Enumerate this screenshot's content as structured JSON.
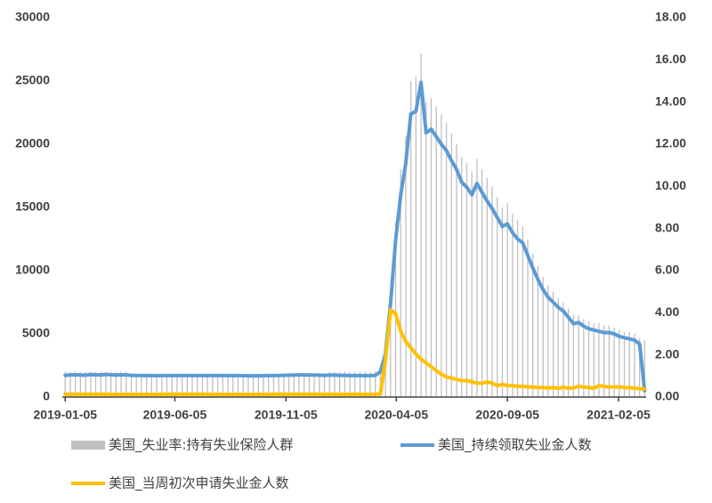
{
  "chart_data": {
    "type": "combo",
    "x": [
      "2019-01-05",
      "2019-01-12",
      "2019-01-19",
      "2019-01-26",
      "2019-02-02",
      "2019-02-09",
      "2019-02-16",
      "2019-02-23",
      "2019-03-02",
      "2019-03-09",
      "2019-03-16",
      "2019-03-23",
      "2019-03-30",
      "2019-04-06",
      "2019-04-13",
      "2019-04-20",
      "2019-04-27",
      "2019-05-04",
      "2019-05-11",
      "2019-05-18",
      "2019-05-25",
      "2019-06-01",
      "2019-06-08",
      "2019-06-15",
      "2019-06-22",
      "2019-06-29",
      "2019-07-06",
      "2019-07-13",
      "2019-07-20",
      "2019-07-27",
      "2019-08-03",
      "2019-08-10",
      "2019-08-17",
      "2019-08-24",
      "2019-08-31",
      "2019-09-07",
      "2019-09-14",
      "2019-09-21",
      "2019-09-28",
      "2019-10-05",
      "2019-10-12",
      "2019-10-19",
      "2019-10-26",
      "2019-11-02",
      "2019-11-09",
      "2019-11-16",
      "2019-11-23",
      "2019-11-30",
      "2019-12-07",
      "2019-12-14",
      "2019-12-21",
      "2019-12-28",
      "2020-01-04",
      "2020-01-11",
      "2020-01-18",
      "2020-01-25",
      "2020-02-01",
      "2020-02-08",
      "2020-02-15",
      "2020-02-22",
      "2020-02-29",
      "2020-03-07",
      "2020-03-14",
      "2020-03-21",
      "2020-03-28",
      "2020-04-04",
      "2020-04-11",
      "2020-04-18",
      "2020-04-25",
      "2020-05-02",
      "2020-05-09",
      "2020-05-16",
      "2020-05-23",
      "2020-05-30",
      "2020-06-06",
      "2020-06-13",
      "2020-06-20",
      "2020-06-27",
      "2020-07-04",
      "2020-07-11",
      "2020-07-18",
      "2020-07-25",
      "2020-08-01",
      "2020-08-08",
      "2020-08-15",
      "2020-08-22",
      "2020-08-29",
      "2020-09-05",
      "2020-09-12",
      "2020-09-19",
      "2020-09-26",
      "2020-10-03",
      "2020-10-10",
      "2020-10-17",
      "2020-10-24",
      "2020-10-31",
      "2020-11-07",
      "2020-11-14",
      "2020-11-21",
      "2020-11-28",
      "2020-12-05",
      "2020-12-12",
      "2020-12-19",
      "2020-12-26",
      "2021-01-02",
      "2021-01-09",
      "2021-01-16",
      "2021-01-23",
      "2021-01-30",
      "2021-02-06",
      "2021-02-13",
      "2021-02-20",
      "2021-02-27",
      "2021-03-06",
      "2021-03-13"
    ],
    "series": [
      {
        "name": "美国_失业率:持有失业保险人群",
        "type": "bar",
        "axis": "y2",
        "color": "#bfbfbf",
        "values": [
          1.2,
          1.2,
          1.2,
          1.2,
          1.2,
          1.2,
          1.2,
          1.2,
          1.2,
          1.2,
          1.2,
          1.2,
          1.2,
          1.1,
          1.1,
          1.1,
          1.1,
          1.1,
          1.1,
          1.1,
          1.1,
          1.1,
          1.1,
          1.1,
          1.1,
          1.1,
          1.1,
          1.1,
          1.1,
          1.1,
          1.1,
          1.1,
          1.1,
          1.1,
          1.1,
          1.1,
          1.1,
          1.1,
          1.1,
          1.1,
          1.1,
          1.1,
          1.1,
          1.1,
          1.1,
          1.1,
          1.1,
          1.1,
          1.1,
          1.1,
          1.1,
          1.1,
          1.2,
          1.2,
          1.2,
          1.2,
          1.2,
          1.2,
          1.2,
          1.2,
          1.2,
          1.2,
          1.2,
          2.3,
          5.0,
          8.3,
          10.8,
          12.4,
          15.0,
          15.2,
          16.3,
          14.0,
          14.2,
          13.8,
          13.4,
          13.0,
          12.5,
          12.0,
          11.4,
          11.1,
          10.7,
          11.3,
          10.8,
          10.4,
          10.0,
          9.5,
          9.0,
          9.2,
          8.7,
          8.4,
          8.1,
          7.5,
          6.8,
          6.2,
          5.7,
          5.3,
          5.0,
          4.7,
          4.5,
          4.2,
          3.9,
          3.9,
          3.7,
          3.6,
          3.5,
          3.5,
          3.4,
          3.4,
          3.3,
          3.2,
          3.1,
          3.1,
          3.0,
          2.8,
          2.7
        ]
      },
      {
        "name": "美国_持续领取失业金人数",
        "type": "line",
        "color": "#5b9bd5",
        "values": [
          1720,
          1750,
          1760,
          1740,
          1730,
          1780,
          1760,
          1750,
          1790,
          1760,
          1740,
          1760,
          1750,
          1720,
          1710,
          1700,
          1700,
          1700,
          1690,
          1700,
          1700,
          1700,
          1700,
          1710,
          1700,
          1700,
          1700,
          1700,
          1700,
          1710,
          1700,
          1700,
          1700,
          1700,
          1700,
          1690,
          1680,
          1680,
          1680,
          1690,
          1700,
          1700,
          1710,
          1720,
          1730,
          1740,
          1750,
          1750,
          1740,
          1740,
          1730,
          1720,
          1730,
          1740,
          1720,
          1720,
          1700,
          1700,
          1700,
          1690,
          1700,
          1720,
          2000,
          3400,
          7400,
          12400,
          16000,
          18500,
          22400,
          22600,
          24900,
          20900,
          21200,
          20600,
          20000,
          19500,
          18700,
          18000,
          17000,
          16600,
          16000,
          16900,
          16200,
          15500,
          14900,
          14200,
          13500,
          13700,
          13000,
          12500,
          12200,
          11200,
          10200,
          9300,
          8500,
          7900,
          7500,
          7100,
          6800,
          6300,
          5800,
          5900,
          5600,
          5400,
          5300,
          5200,
          5100,
          5100,
          5000,
          4800,
          4700,
          4600,
          4500,
          4200,
          500
        ]
      },
      {
        "name": "美国_当周初次申请失业金人数",
        "type": "line",
        "color": "#ffc000",
        "values": [
          230,
          220,
          220,
          230,
          220,
          220,
          220,
          220,
          220,
          210,
          210,
          210,
          210,
          210,
          210,
          210,
          210,
          210,
          210,
          210,
          220,
          220,
          220,
          220,
          220,
          220,
          220,
          220,
          220,
          220,
          210,
          210,
          210,
          210,
          210,
          210,
          210,
          210,
          210,
          210,
          220,
          220,
          220,
          220,
          220,
          220,
          220,
          220,
          220,
          220,
          220,
          220,
          210,
          220,
          220,
          210,
          210,
          220,
          220,
          210,
          210,
          220,
          250,
          2900,
          6900,
          6600,
          5200,
          4400,
          3900,
          3400,
          3000,
          2700,
          2400,
          2100,
          1800,
          1600,
          1500,
          1400,
          1300,
          1300,
          1200,
          1100,
          1100,
          1200,
          1100,
          900,
          1000,
          900,
          900,
          850,
          850,
          800,
          800,
          750,
          750,
          720,
          750,
          700,
          780,
          700,
          720,
          850,
          800,
          750,
          700,
          900,
          850,
          800,
          800,
          800,
          750,
          750,
          700,
          650,
          650
        ]
      }
    ],
    "xlim": [
      "2019-01-01",
      "2021-03-15"
    ],
    "xticks": [
      "2019-01-05",
      "2019-06-05",
      "2019-11-05",
      "2020-04-05",
      "2020-09-05",
      "2021-02-05"
    ],
    "ylim": [
      0,
      30000
    ],
    "yticks": [
      0,
      5000,
      10000,
      15000,
      20000,
      25000,
      30000
    ],
    "y2lim": [
      0,
      18
    ],
    "y2ticks": [
      {
        "value": 0,
        "label": "0.00"
      },
      {
        "value": 2,
        "label": "2.00"
      },
      {
        "value": 4,
        "label": "4.00"
      },
      {
        "value": 6,
        "label": "6.00"
      },
      {
        "value": 8,
        "label": "8.00"
      },
      {
        "value": 10,
        "label": "10.00"
      },
      {
        "value": 12,
        "label": "12.00"
      },
      {
        "value": 14,
        "label": "14.00"
      },
      {
        "value": 16,
        "label": "16.00"
      },
      {
        "value": 18,
        "label": "18.00"
      }
    ],
    "legend": "bottom"
  }
}
